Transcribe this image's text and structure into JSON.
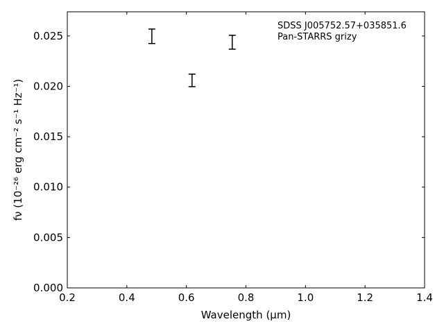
{
  "chart_data": {
    "type": "errorbar",
    "annotation": [
      "SDSS J005752.57+035851.6",
      "Pan-STARRS grizy"
    ],
    "xlabel": "Wavelength (μm)",
    "ylabel": "fν (10⁻²⁶ erg cm⁻² s⁻¹ Hz⁻¹)",
    "x": [
      0.484,
      0.619,
      0.754
    ],
    "values": [
      0.02497,
      0.02059,
      0.02438
    ],
    "errors": [
      0.00072,
      0.00062,
      0.00069
    ],
    "color": "#000000",
    "xlim": [
      0.2,
      1.4
    ],
    "ylim": [
      0,
      0.0274
    ],
    "xticks": [
      0.2,
      0.4,
      0.6,
      0.8,
      {
        "value": 1,
        "label": "1.0"
      },
      1.2,
      1.4
    ],
    "yticks": [
      {
        "value": 0,
        "label": "0.000"
      },
      0.005,
      {
        "value": 0.01,
        "label": "0.010"
      },
      0.015,
      {
        "value": 0.02,
        "label": "0.020"
      },
      0.025
    ]
  }
}
